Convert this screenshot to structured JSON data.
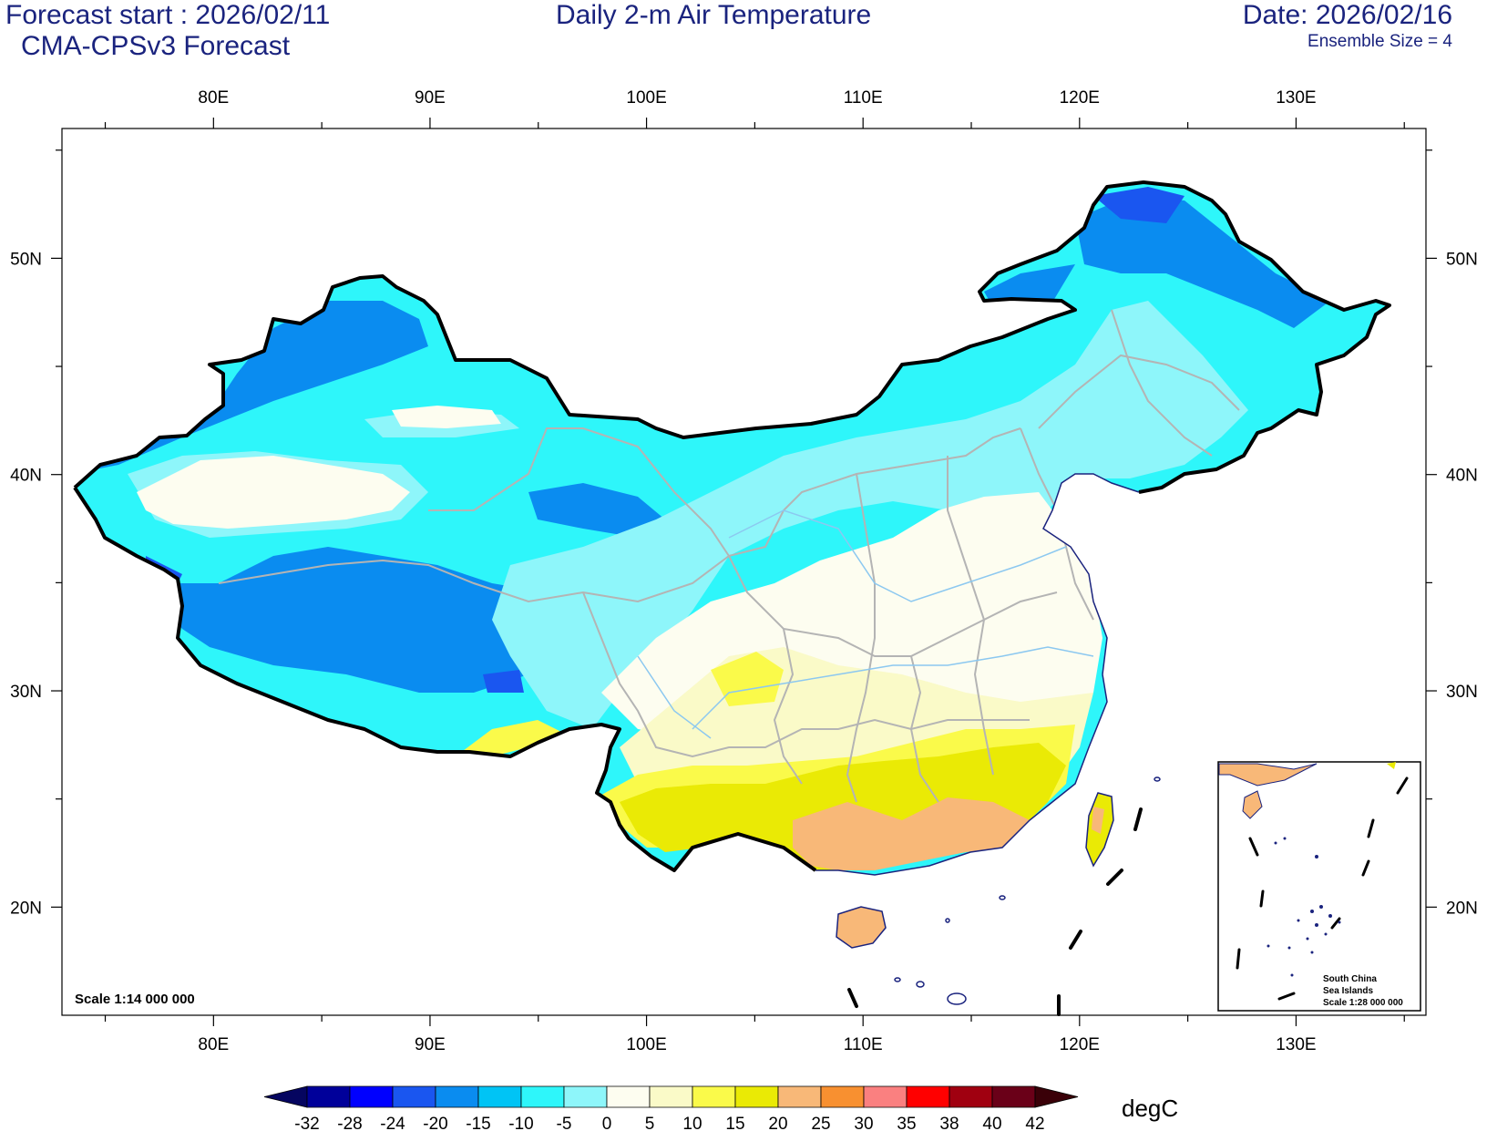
{
  "header": {
    "forecast_start": "Forecast start : 2026/02/11",
    "model": "CMA-CPSv3 Forecast",
    "title": "Daily 2-m Air Temperature",
    "date": "Date: 2026/02/16",
    "ensemble": "Ensemble Size = 4"
  },
  "axes": {
    "lon_labels": [
      "80E",
      "90E",
      "100E",
      "110E",
      "120E",
      "130E"
    ],
    "lat_labels": [
      "50N",
      "40N",
      "30N",
      "20N"
    ],
    "lon_range": [
      73,
      136
    ],
    "lat_range": [
      15,
      56
    ]
  },
  "map": {
    "scale": "Scale 1:14 000 000",
    "inset_lines": [
      "South China",
      "Sea Islands",
      "Scale 1:28 000 000"
    ]
  },
  "colorbar": {
    "unit": "degC",
    "levels": [
      "-32",
      "-28",
      "-24",
      "-20",
      "-15",
      "-10",
      "-5",
      "0",
      "5",
      "10",
      "15",
      "20",
      "25",
      "30",
      "35",
      "38",
      "40",
      "42"
    ],
    "colors": [
      "#050560",
      "#00009a",
      "#0000ff",
      "#1a56f0",
      "#0a8cf0",
      "#00c4f5",
      "#2ef6fa",
      "#8ef6fa",
      "#fdfdf0",
      "#fafac8",
      "#fafa4a",
      "#eaea05",
      "#f8b878",
      "#f89030",
      "#fa8080",
      "#ff0000",
      "#a00010",
      "#6a0018",
      "#3a0008"
    ]
  },
  "colors": {
    "text": "#1a237e",
    "border": "#000000",
    "province": "#b4b4b4",
    "river": "#8cc8f0"
  }
}
